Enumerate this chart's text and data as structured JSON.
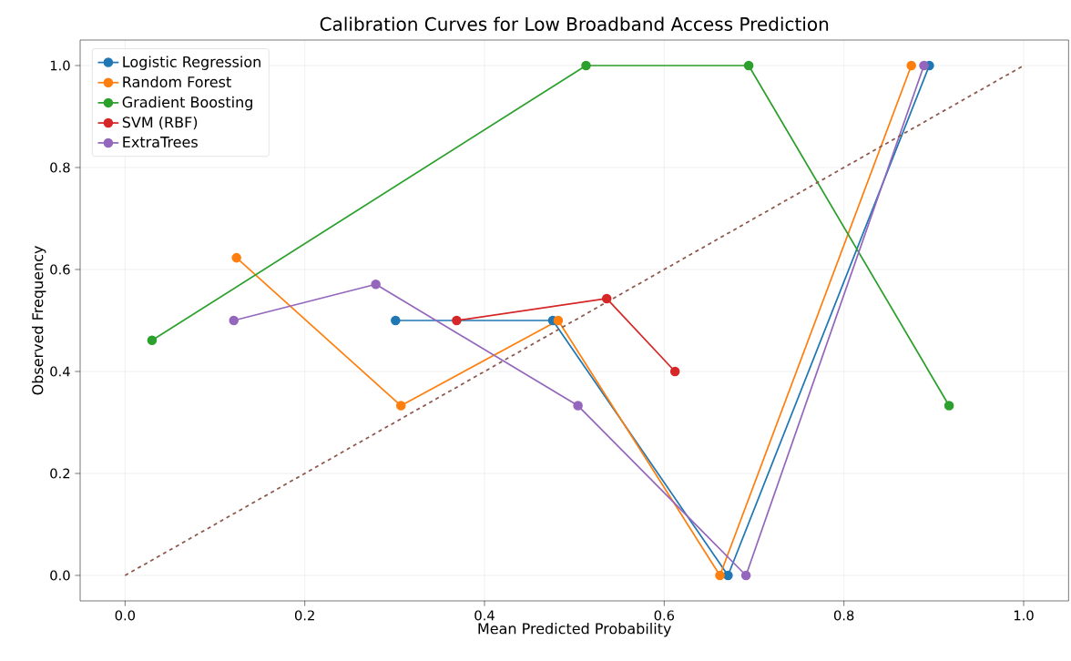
{
  "chart_data": {
    "type": "line",
    "title": "Calibration Curves for Low Broadband Access Prediction",
    "xlabel": "Mean Predicted Probability",
    "ylabel": "Observed Frequency",
    "xlim": [
      -0.05,
      1.05
    ],
    "ylim": [
      -0.05,
      1.05
    ],
    "xticks": [
      {
        "value": 0,
        "label": "0.0"
      },
      0.2,
      0.4,
      0.6,
      0.8,
      {
        "value": 1,
        "label": "1.0"
      }
    ],
    "yticks": [
      {
        "value": 0,
        "label": "0.0"
      },
      0.2,
      0.4,
      0.6,
      0.8,
      {
        "value": 1,
        "label": "1.0"
      }
    ],
    "grid": true,
    "legend": "top left",
    "marker": "circle",
    "line_style": "solid",
    "series": [
      {
        "name": "Logistic Regression",
        "color": "#1f77b4",
        "x": [
          0.301,
          0.476,
          0.671,
          0.895
        ],
        "values": [
          0.5,
          0.5,
          0,
          1
        ]
      },
      {
        "name": "Random Forest",
        "color": "#ff7f0e",
        "x": [
          0.124,
          0.307,
          0.482,
          0.662,
          0.875
        ],
        "values": [
          0.623,
          0.333,
          0.5,
          0,
          1
        ]
      },
      {
        "name": "Gradient Boosting",
        "color": "#2ca02c",
        "x": [
          0.03,
          0.513,
          0.694,
          0.917
        ],
        "values": [
          0.461,
          1,
          1,
          0.333
        ]
      },
      {
        "name": "SVM (RBF)",
        "color": "#d62728",
        "x": [
          0.369,
          0.536,
          0.612
        ],
        "values": [
          0.5,
          0.543,
          0.4
        ]
      },
      {
        "name": "ExtraTrees",
        "color": "#9467bd",
        "x": [
          0.121,
          0.279,
          0.504,
          0.691,
          0.889
        ],
        "values": [
          0.5,
          0.571,
          0.333,
          0,
          1
        ]
      },
      {
        "color": "#8c564b",
        "x": [
          0,
          1
        ],
        "values": [
          0,
          1
        ],
        "marker": "none",
        "line_style": "dashed"
      }
    ]
  }
}
